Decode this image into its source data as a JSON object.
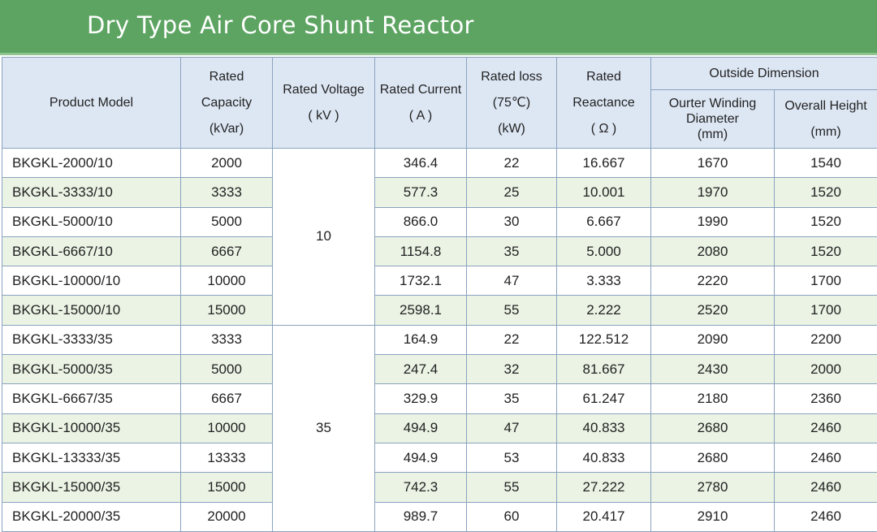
{
  "title": "Dry Type Air Core Shunt Reactor",
  "headers": {
    "product_model": "Product Model",
    "rated_capacity": [
      "Rated",
      "Capacity",
      "(kVar)"
    ],
    "rated_voltage": [
      "Rated Voltage",
      "( kV )"
    ],
    "rated_current": [
      "Rated Current",
      "( A )"
    ],
    "rated_loss": [
      "Rated loss",
      "(75℃)",
      "(kW)"
    ],
    "rated_reactance": [
      "Rated",
      "Reactance",
      "( Ω )"
    ],
    "outside_dimension": "Outside Dimension",
    "outer_winding_diameter": [
      "Ourter  Winding",
      "Diameter",
      "(mm)"
    ],
    "overall_height": [
      "Overall Height",
      "(mm)"
    ]
  },
  "voltage_groups": [
    "10",
    "35"
  ],
  "rows": [
    {
      "model": "BKGKL-2000/10",
      "capacity": "2000",
      "current": "346.4",
      "loss": "22",
      "reactance": "16.667",
      "diameter": "1670",
      "height": "1540"
    },
    {
      "model": "BKGKL-3333/10",
      "capacity": "3333",
      "current": "577.3",
      "loss": "25",
      "reactance": "10.001",
      "diameter": "1970",
      "height": "1520"
    },
    {
      "model": "BKGKL-5000/10",
      "capacity": "5000",
      "current": "866.0",
      "loss": "30",
      "reactance": "6.667",
      "diameter": "1990",
      "height": "1520"
    },
    {
      "model": "BKGKL-6667/10",
      "capacity": "6667",
      "current": "1154.8",
      "loss": "35",
      "reactance": "5.000",
      "diameter": "2080",
      "height": "1520"
    },
    {
      "model": "BKGKL-10000/10",
      "capacity": "10000",
      "current": "1732.1",
      "loss": "47",
      "reactance": "3.333",
      "diameter": "2220",
      "height": "1700"
    },
    {
      "model": "BKGKL-15000/10",
      "capacity": "15000",
      "current": "2598.1",
      "loss": "55",
      "reactance": "2.222",
      "diameter": "2520",
      "height": "1700"
    },
    {
      "model": "BKGKL-3333/35",
      "capacity": "3333",
      "current": "164.9",
      "loss": "22",
      "reactance": "122.512",
      "diameter": "2090",
      "height": "2200"
    },
    {
      "model": "BKGKL-5000/35",
      "capacity": "5000",
      "current": "247.4",
      "loss": "32",
      "reactance": "81.667",
      "diameter": "2430",
      "height": "2000"
    },
    {
      "model": "BKGKL-6667/35",
      "capacity": "6667",
      "current": "329.9",
      "loss": "35",
      "reactance": "61.247",
      "diameter": "2180",
      "height": "2360"
    },
    {
      "model": "BKGKL-10000/35",
      "capacity": "10000",
      "current": "494.9",
      "loss": "47",
      "reactance": "40.833",
      "diameter": "2680",
      "height": "2460"
    },
    {
      "model": "BKGKL-13333/35",
      "capacity": "13333",
      "current": "494.9",
      "loss": "53",
      "reactance": "40.833",
      "diameter": "2680",
      "height": "2460"
    },
    {
      "model": "BKGKL-15000/35",
      "capacity": "15000",
      "current": "742.3",
      "loss": "55",
      "reactance": "27.222",
      "diameter": "2780",
      "height": "2460"
    },
    {
      "model": "BKGKL-20000/35",
      "capacity": "20000",
      "current": "989.7",
      "loss": "60",
      "reactance": "20.417",
      "diameter": "2910",
      "height": "2460"
    }
  ],
  "colors": {
    "banner": "#5da462",
    "header_bg": "#dde7f4",
    "row_alt": "#eaf3e4",
    "border": "#8aa2bf"
  }
}
